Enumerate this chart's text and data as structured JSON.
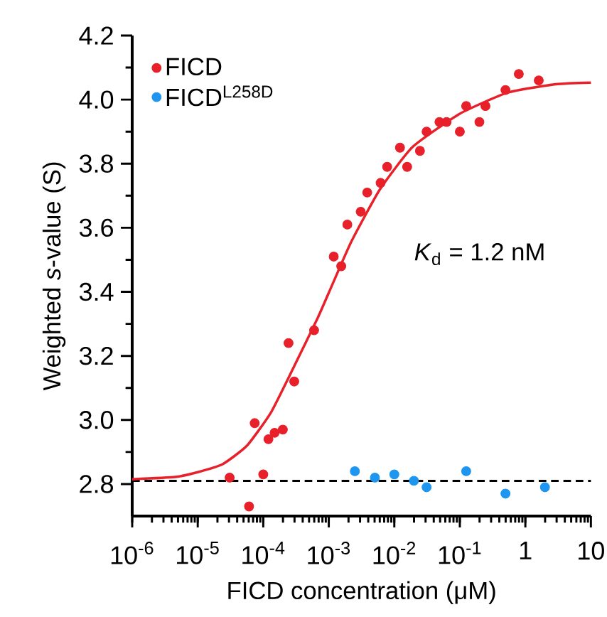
{
  "chart_data": {
    "type": "scatter",
    "xlabel": "FICD concentration (μM)",
    "ylabel": "Weighted *s*-value (S)",
    "annotations": [
      "*K*$_{d}$ = 1.2 nM"
    ],
    "log": "x",
    "legend": "top left",
    "xlim": [
      1e-06,
      10
    ],
    "ylim": [
      2.7,
      4.2
    ],
    "xticks": [
      {
        "value": 1e-06,
        "label": "10$^{-6}$"
      },
      {
        "value": 1e-05,
        "label": "10$^{-5}$"
      },
      {
        "value": 0.0001,
        "label": "10$^{-4}$"
      },
      {
        "value": 0.001,
        "label": "10$^{-3}$"
      },
      {
        "value": 0.01,
        "label": "10$^{-2}$"
      },
      {
        "value": 0.1,
        "label": "10$^{-1}$"
      },
      {
        "value": 1,
        "label": "1"
      },
      {
        "value": 10,
        "label": "10"
      }
    ],
    "yticks": [
      {
        "value": 2.8,
        "label": "2.8"
      },
      {
        "value": 3.0,
        "label": "3.0"
      },
      {
        "value": 3.2,
        "label": "3.2"
      },
      {
        "value": 3.4,
        "label": "3.4"
      },
      {
        "value": 3.6,
        "label": "3.6"
      },
      {
        "value": 3.8,
        "label": "3.8"
      },
      {
        "value": 4.0,
        "label": "4.0"
      },
      {
        "value": 4.2,
        "label": "4.2"
      }
    ],
    "ref_lines": [
      {
        "axis": "y",
        "value": 2.81,
        "color": "#000000",
        "line_style": "dashed"
      }
    ],
    "series": [
      {
        "name": "FICD",
        "marker": "circle",
        "color": "#e8202a",
        "x": [
          3.07e-05,
          6.07e-05,
          7.4e-05,
          0.0001,
          0.00012,
          0.000149,
          0.000199,
          0.000243,
          0.000297,
          0.000597,
          0.00119,
          0.00155,
          0.00192,
          0.00307,
          0.00386,
          0.00618,
          0.00778,
          0.0122,
          0.0157,
          0.0246,
          0.0311,
          0.0489,
          0.0628,
          0.1,
          0.125,
          0.199,
          0.246,
          0.497,
          0.794,
          1.6
        ],
        "values": [
          2.82,
          2.73,
          2.99,
          2.83,
          2.94,
          2.96,
          2.97,
          3.24,
          3.12,
          3.28,
          3.51,
          3.48,
          3.61,
          3.65,
          3.71,
          3.74,
          3.79,
          3.85,
          3.79,
          3.84,
          3.9,
          3.93,
          3.93,
          3.9,
          3.98,
          3.93,
          3.98,
          4.03,
          4.08,
          4.06
        ]
      },
      {
        "name": "FICD$^{L258D}$",
        "marker": "circle",
        "color": "#1e96f0",
        "x": [
          0.0025,
          0.00506,
          0.01,
          0.0199,
          0.0311,
          0.125,
          0.497,
          1.99
        ],
        "values": [
          2.84,
          2.82,
          2.83,
          2.81,
          2.79,
          2.84,
          2.77,
          2.79
        ]
      },
      {
        "type": "line",
        "marker": "none",
        "color": "#e8202a",
        "x": [
          1e-06,
          4.5e-06,
          1e-05,
          2.4e-05,
          5.6e-05,
          0.00013,
          0.0003,
          0.00068,
          0.00113,
          0.0022,
          0.006,
          0.019,
          0.1,
          0.54,
          2.9,
          10
        ],
        "values": [
          2.815,
          2.822,
          2.837,
          2.862,
          2.919,
          3.022,
          3.17,
          3.319,
          3.422,
          3.556,
          3.719,
          3.852,
          3.956,
          4.022,
          4.048,
          4.053
        ]
      }
    ]
  }
}
